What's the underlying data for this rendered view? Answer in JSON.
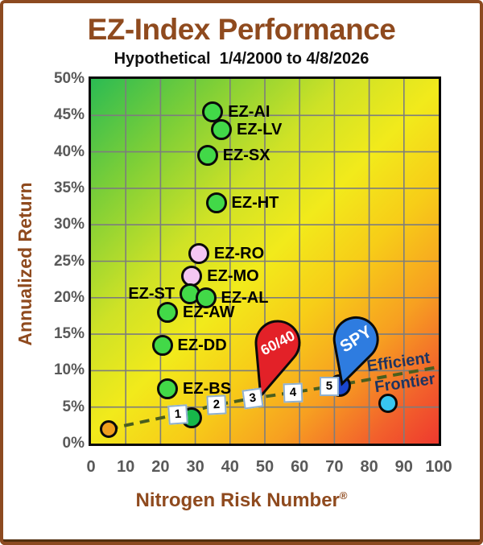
{
  "chart_data": {
    "type": "scatter",
    "title": "EZ-Index Performance",
    "subtitle": "Hypothetical  1/4/2000 to 4/8/2026",
    "xlabel": "Nitrogen Risk Number",
    "xlabel_suffix": "®",
    "ylabel": "Annualized Return",
    "xlim": [
      0,
      100
    ],
    "ylim": [
      0,
      50
    ],
    "grid": true,
    "x_ticks": [
      {
        "value": 0,
        "label": "0"
      },
      {
        "value": 10,
        "label": "10"
      },
      {
        "value": 20,
        "label": "20"
      },
      {
        "value": 30,
        "label": "30"
      },
      {
        "value": 40,
        "label": "40"
      },
      {
        "value": 50,
        "label": "50"
      },
      {
        "value": 60,
        "label": "60"
      },
      {
        "value": 70,
        "label": "70"
      },
      {
        "value": 80,
        "label": "80"
      },
      {
        "value": 90,
        "label": "90"
      },
      {
        "value": 100,
        "label": "100"
      }
    ],
    "y_ticks": [
      {
        "value": 0,
        "label": "0%"
      },
      {
        "value": 5,
        "label": "5%"
      },
      {
        "value": 10,
        "label": "10%"
      },
      {
        "value": 15,
        "label": "15%"
      },
      {
        "value": 20,
        "label": "20%"
      },
      {
        "value": 25,
        "label": "25%"
      },
      {
        "value": 30,
        "label": "30%"
      },
      {
        "value": 35,
        "label": "35%"
      },
      {
        "value": 40,
        "label": "40%"
      },
      {
        "value": 45,
        "label": "45%"
      },
      {
        "value": 50,
        "label": "50%"
      }
    ],
    "points": [
      {
        "label": "EZ-AI",
        "x": 35,
        "y": 45.5,
        "fill": "#42d948",
        "r": 13,
        "side": "right"
      },
      {
        "label": "EZ-LV",
        "x": 37.5,
        "y": 43,
        "fill": "#42d948",
        "r": 13,
        "side": "right"
      },
      {
        "label": "EZ-SX",
        "x": 33.5,
        "y": 39.5,
        "fill": "#42d948",
        "r": 13,
        "side": "right"
      },
      {
        "label": "EZ-HT",
        "x": 36,
        "y": 33,
        "fill": "#42d948",
        "r": 13,
        "side": "right"
      },
      {
        "label": "EZ-RO",
        "x": 31,
        "y": 26,
        "fill": "#f4c6f2",
        "r": 13,
        "side": "right"
      },
      {
        "label": "EZ-MO",
        "x": 29,
        "y": 23,
        "fill": "#f4c6f2",
        "r": 13,
        "side": "right"
      },
      {
        "label": "EZ-ST",
        "x": 28.5,
        "y": 20.5,
        "fill": "#42d948",
        "r": 13,
        "side": "left"
      },
      {
        "label": "EZ-AL",
        "x": 33,
        "y": 20,
        "fill": "#42d948",
        "r": 13,
        "side": "right"
      },
      {
        "label": "EZ-AW",
        "x": 22,
        "y": 18,
        "fill": "#42d948",
        "r": 13,
        "side": "right"
      },
      {
        "label": "EZ-DD",
        "x": 20.5,
        "y": 13.5,
        "fill": "#42d948",
        "r": 13,
        "side": "right"
      },
      {
        "label": "EZ-BS",
        "x": 22,
        "y": 7.5,
        "fill": "#42d948",
        "r": 13,
        "side": "right"
      },
      {
        "label": "",
        "name": "start-point",
        "x": 5,
        "y": 2,
        "fill": "#f09f1d",
        "r": 11
      },
      {
        "label": "",
        "name": "frontier-point",
        "x": 29,
        "y": 3.5,
        "fill": "#17b84a",
        "r": 13
      },
      {
        "label": "",
        "name": "spy-point",
        "x": 71.5,
        "y": 8,
        "fill": "#1a46cf",
        "r": 14
      },
      {
        "label": "",
        "name": "market-point",
        "x": 85.5,
        "y": 5.5,
        "fill": "#38c6f0",
        "r": 12
      }
    ],
    "frontier": {
      "color": "#4a5e1e",
      "dash": "12 8",
      "width": 4,
      "points": [
        [
          5,
          2
        ],
        [
          25,
          4
        ],
        [
          36,
          5.3
        ],
        [
          46.5,
          6.2
        ],
        [
          58,
          7
        ],
        [
          68.5,
          7.8
        ],
        [
          100,
          10.5
        ]
      ],
      "label_line1": "Efficient",
      "label_line2": "Frontier",
      "label_color": "#1f3460",
      "label_rotation": -8,
      "label1_pos": [
        88.4,
        11.2
      ],
      "label2_pos": [
        90.3,
        8.3
      ]
    },
    "milestones": [
      {
        "n": "1",
        "x": 25,
        "y": 4,
        "rot": -4
      },
      {
        "n": "2",
        "x": 36,
        "y": 5.3,
        "rot": -3
      },
      {
        "n": "3",
        "x": 46.5,
        "y": 6.2,
        "rot": -8
      },
      {
        "n": "4",
        "x": 58,
        "y": 7,
        "rot": -2
      },
      {
        "n": "5",
        "x": 68.5,
        "y": 7.8,
        "rot": 0
      }
    ],
    "balloons": [
      {
        "label": "60/40",
        "fill": "#e32128",
        "text_color": "#ffffff",
        "tip_x": 48.8,
        "tip_y": 6.5,
        "body_x": 53.7,
        "body_y": 13.8,
        "radius": 27,
        "rotation": -28,
        "font_size": 18
      },
      {
        "label": "SPY",
        "fill": "#2e7ce0",
        "text_color": "#ffffff",
        "tip_x": 72.2,
        "tip_y": 8.2,
        "body_x": 76.2,
        "body_y": 14.3,
        "radius": 27,
        "rotation": -33,
        "font_size": 21
      }
    ],
    "colors": {
      "title": "#8f4a1e",
      "tick_labels": "#595959",
      "plot_gradient_topleft": "#2bbb53",
      "plot_gradient_center": "#f2ea1b",
      "plot_gradient_bottomright": "#ee392e",
      "gridline": "#7d7d7d"
    }
  }
}
